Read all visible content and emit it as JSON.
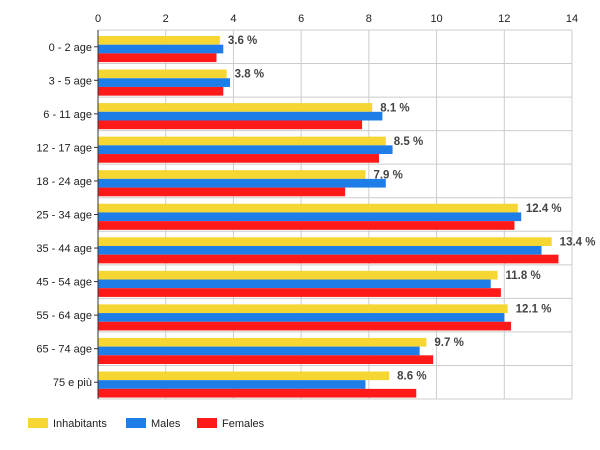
{
  "chart_data": {
    "type": "bar",
    "orientation": "horizontal",
    "grid": true,
    "legend_position": "bottom-left",
    "xlim": [
      0,
      14
    ],
    "xticks": [
      "0",
      "2",
      "4",
      "6",
      "8",
      "10",
      "12",
      "14"
    ],
    "categories": [
      "0 - 2 age",
      "3 - 5 age",
      "6 - 11 age",
      "12 - 17 age",
      "18 - 24 age",
      "25 - 34 age",
      "35 - 44 age",
      "45 - 54 age",
      "55 - 64 age",
      "65 - 74 age",
      "75 e più"
    ],
    "series": [
      {
        "name": "Inhabitants",
        "color": "#f5d633",
        "values": [
          3.6,
          3.8,
          8.1,
          8.5,
          7.9,
          12.4,
          13.4,
          11.8,
          12.1,
          9.7,
          8.6
        ]
      },
      {
        "name": "Males",
        "color": "#1f7de8",
        "values": [
          3.7,
          3.9,
          8.4,
          8.7,
          8.5,
          12.5,
          13.1,
          11.6,
          12.0,
          9.5,
          7.9
        ]
      },
      {
        "name": "Females",
        "color": "#ff1a1a",
        "values": [
          3.5,
          3.7,
          7.8,
          8.3,
          7.3,
          12.3,
          13.6,
          11.9,
          12.2,
          9.9,
          9.4
        ]
      }
    ],
    "data_labels": [
      "3.6 %",
      "3.8 %",
      "8.1 %",
      "8.5 %",
      "7.9 %",
      "12.4 %",
      "13.4 %",
      "11.8 %",
      "12.1 %",
      "9.7 %",
      "8.6 %"
    ]
  }
}
